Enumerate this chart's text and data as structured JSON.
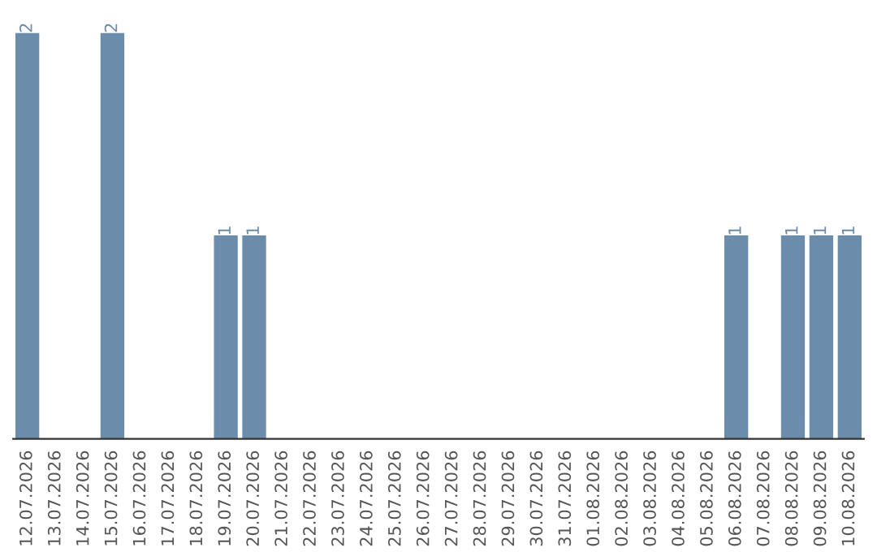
{
  "chart_data": {
    "type": "bar",
    "categories": [
      "12.07.2026",
      "13.07.2026",
      "14.07.2026",
      "15.07.2026",
      "16.07.2026",
      "17.07.2026",
      "18.07.2026",
      "19.07.2026",
      "20.07.2026",
      "21.07.2026",
      "22.07.2026",
      "23.07.2026",
      "24.07.2026",
      "25.07.2026",
      "26.07.2026",
      "27.07.2026",
      "28.07.2026",
      "29.07.2026",
      "30.07.2026",
      "31.07.2026",
      "01.08.2026",
      "02.08.2026",
      "03.08.2026",
      "04.08.2026",
      "05.08.2026",
      "06.08.2026",
      "07.08.2026",
      "08.08.2026",
      "09.08.2026",
      "10.08.2026"
    ],
    "values": [
      2,
      0,
      0,
      2,
      0,
      0,
      0,
      1,
      1,
      0,
      0,
      0,
      0,
      0,
      0,
      0,
      0,
      0,
      0,
      0,
      0,
      0,
      0,
      0,
      0,
      1,
      0,
      1,
      1,
      1
    ],
    "value_labels": [
      "2",
      null,
      null,
      "2",
      null,
      null,
      null,
      "1",
      "1",
      null,
      null,
      null,
      null,
      null,
      null,
      null,
      null,
      null,
      null,
      null,
      null,
      null,
      null,
      null,
      null,
      "1",
      null,
      "1",
      "1",
      "1"
    ],
    "color": "#6b8cab",
    "ylim": [
      0,
      2
    ],
    "tick_labels": "x",
    "grid": false,
    "legend": false
  }
}
